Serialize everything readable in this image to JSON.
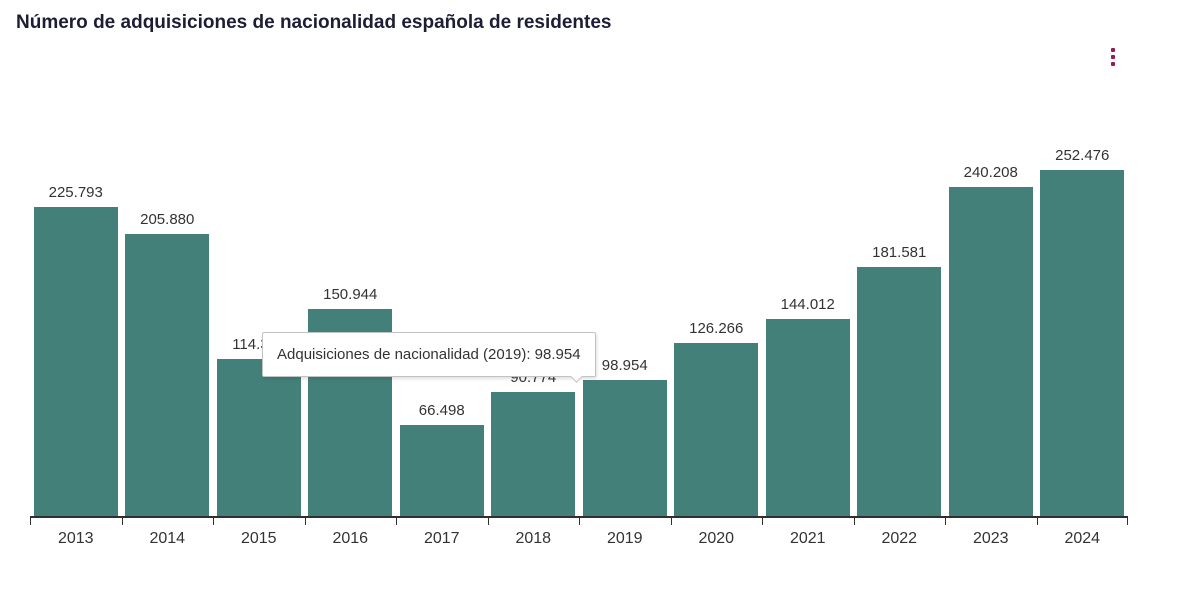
{
  "header": {
    "title": "Número de adquisiciones de nacionalidad española de residentes"
  },
  "menu": {
    "kebab_label": "chart context menu"
  },
  "tooltip": {
    "text": "Adquisiciones de nacionalidad (2019): 98.954"
  },
  "chart_data": {
    "type": "bar",
    "title": "Número de adquisiciones de nacionalidad española de residentes",
    "categories": [
      "2013",
      "2014",
      "2015",
      "2016",
      "2017",
      "2018",
      "2019",
      "2020",
      "2021",
      "2022",
      "2023",
      "2024"
    ],
    "values": [
      225793,
      205880,
      114351,
      150944,
      66498,
      90774,
      98954,
      126266,
      144012,
      181581,
      240208,
      252476
    ],
    "labels": [
      "225.793",
      "205.880",
      "114.351",
      "150.944",
      "66.498",
      "90.774",
      "98.954",
      "126.266",
      "144.012",
      "181.581",
      "240.208",
      "252.476"
    ],
    "xlabel": "",
    "ylabel": "",
    "ylim": [
      0,
      260000
    ],
    "grid": false,
    "legend_position": "none",
    "bar_color": "#44807a",
    "axis_color": "#2f2f2f",
    "label_color": "#333333",
    "tooltip": {
      "category": "2019",
      "value": 98954,
      "text": "Adquisiciones de nacionalidad (2019): 98.954"
    }
  }
}
